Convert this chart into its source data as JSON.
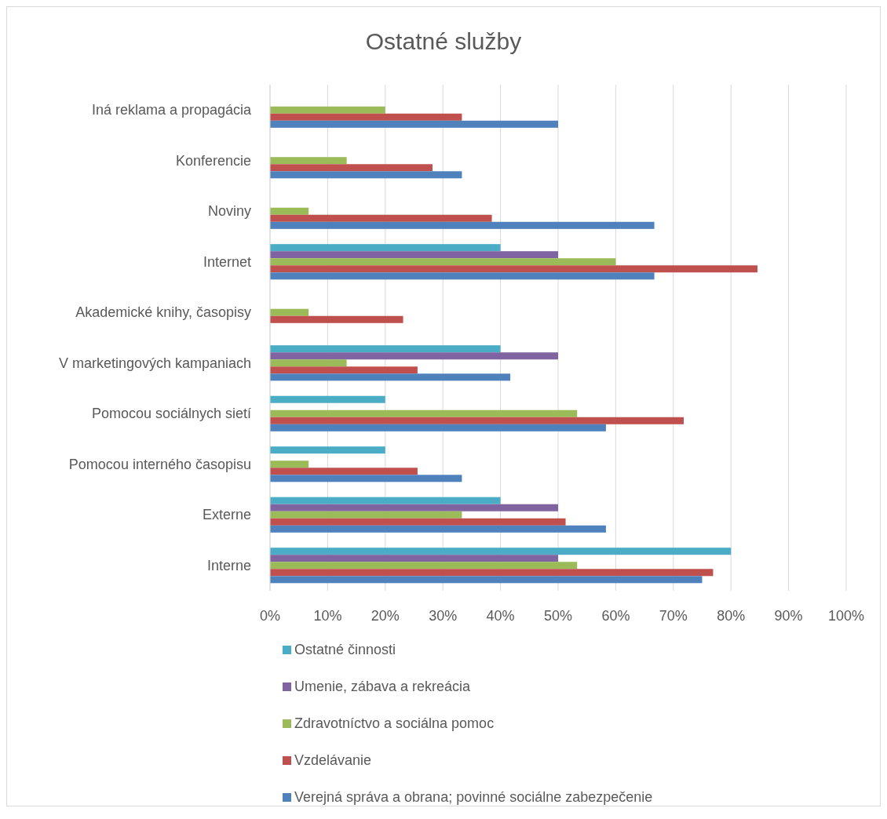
{
  "chart_data": {
    "type": "bar",
    "orientation": "horizontal",
    "title": "Ostatné služby",
    "categories": [
      "Iná reklama a propagácia",
      "Konferencie",
      "Noviny",
      "Internet",
      "Akademické knihy, časopisy",
      "V marketingových kampaniach",
      "Pomocou sociálnych sietí",
      "Pomocou interného časopisu",
      "Externe",
      "Interne"
    ],
    "series": [
      {
        "name": "Ostatné činnosti",
        "color": "#4bacc6",
        "values": [
          null,
          null,
          null,
          40,
          null,
          40,
          20,
          20,
          40,
          80
        ]
      },
      {
        "name": "Umenie, zábava a rekreácia",
        "color": "#8064a2",
        "values": [
          null,
          null,
          null,
          50,
          null,
          50,
          null,
          null,
          50,
          50
        ]
      },
      {
        "name": "Zdravotníctvo a sociálna pomoc",
        "color": "#9bbb59",
        "values": [
          20,
          13.3,
          6.7,
          60,
          6.7,
          13.3,
          53.3,
          6.7,
          33.3,
          53.3
        ]
      },
      {
        "name": "Vzdelávanie",
        "color": "#c0504d",
        "values": [
          33.3,
          28.2,
          38.5,
          84.6,
          23.1,
          25.6,
          71.8,
          25.6,
          51.3,
          76.9
        ]
      },
      {
        "name": "Verejná správa a obrana; povinné sociálne zabezpečenie",
        "color": "#4f81bd",
        "values": [
          50,
          33.3,
          66.7,
          66.7,
          null,
          41.7,
          58.3,
          33.3,
          58.3,
          75
        ]
      }
    ],
    "xlim": [
      0,
      100
    ],
    "xticks": [
      {
        "value": 0,
        "label": "0%"
      },
      {
        "value": 10,
        "label": "10%"
      },
      {
        "value": 20,
        "label": "20%"
      },
      {
        "value": 30,
        "label": "30%"
      },
      {
        "value": 40,
        "label": "40%"
      },
      {
        "value": 50,
        "label": "50%"
      },
      {
        "value": 60,
        "label": "60%"
      },
      {
        "value": 70,
        "label": "70%"
      },
      {
        "value": 80,
        "label": "80%"
      },
      {
        "value": 90,
        "label": "90%"
      },
      {
        "value": 100,
        "label": "100%"
      }
    ],
    "grid": "x",
    "legend": "bottom"
  }
}
